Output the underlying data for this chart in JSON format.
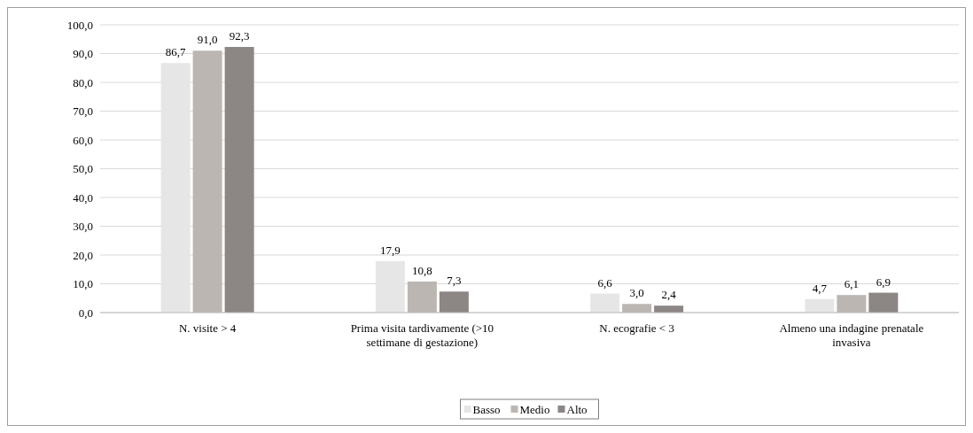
{
  "chart_data": {
    "type": "bar",
    "categories": [
      "N. visite > 4",
      "Prima visita tardivamente (>10 settimane di gestazione)",
      "N. ecografie < 3",
      "Almeno una indagine prenatale invasiva"
    ],
    "series": [
      {
        "name": "Basso",
        "color": "#e7e6e6",
        "values": [
          86.7,
          17.9,
          6.6,
          4.7
        ],
        "value_labels": [
          "86,7",
          "17,9",
          "6,6",
          "4,7"
        ]
      },
      {
        "name": "Medio",
        "color": "#bcb6b3",
        "values": [
          91.0,
          10.8,
          3.0,
          6.1
        ],
        "value_labels": [
          "91,0",
          "10,8",
          "3,0",
          "6,1"
        ]
      },
      {
        "name": "Alto",
        "color": "#8c8685",
        "values": [
          92.3,
          7.3,
          2.4,
          6.9
        ],
        "value_labels": [
          "92,3",
          "7,3",
          "2,4",
          "6,9"
        ]
      }
    ],
    "ylim": [
      0,
      100
    ],
    "yticks": [
      {
        "value": 0,
        "label": "0,0"
      },
      {
        "value": 10,
        "label": "10,0"
      },
      {
        "value": 20,
        "label": "20,0"
      },
      {
        "value": 30,
        "label": "30,0"
      },
      {
        "value": 40,
        "label": "40,0"
      },
      {
        "value": 50,
        "label": "50,0"
      },
      {
        "value": 60,
        "label": "60,0"
      },
      {
        "value": 70,
        "label": "70,0"
      },
      {
        "value": 80,
        "label": "80,0"
      },
      {
        "value": 90,
        "label": "90,0"
      },
      {
        "value": 100,
        "label": "100,0"
      }
    ],
    "grid": "y",
    "legend": "bottom"
  }
}
